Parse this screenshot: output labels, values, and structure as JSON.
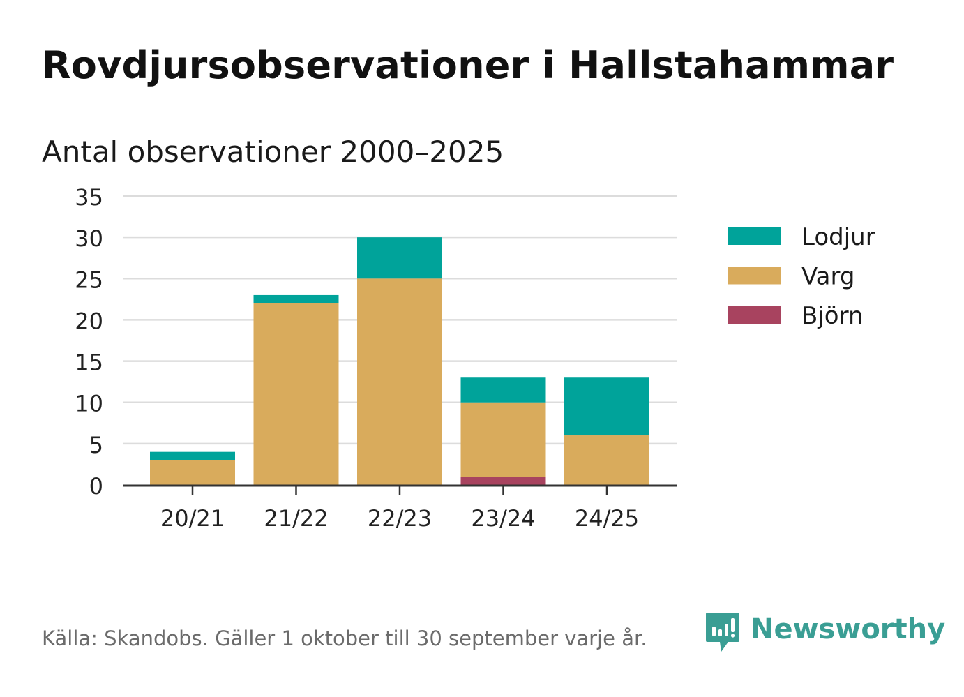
{
  "header": {
    "title": "Rovdjursobservationer i Hallstahammar",
    "subtitle": "Antal observationer 2000–2025"
  },
  "chart_data": {
    "type": "bar",
    "stacked": true,
    "categories": [
      "20/21",
      "21/22",
      "22/23",
      "23/24",
      "24/25"
    ],
    "series": [
      {
        "name": "Björn",
        "color": "#a8435f",
        "values": [
          0,
          0,
          0,
          1,
          0
        ]
      },
      {
        "name": "Varg",
        "color": "#d9ab5c",
        "values": [
          3,
          22,
          25,
          9,
          6
        ]
      },
      {
        "name": "Lodjur",
        "color": "#00a39a",
        "values": [
          1,
          1,
          5,
          3,
          7
        ]
      }
    ],
    "legend_order": [
      "Lodjur",
      "Varg",
      "Björn"
    ],
    "legend_position": "right",
    "ylim": [
      0,
      35
    ],
    "yticks": [
      0,
      5,
      10,
      15,
      20,
      25,
      30,
      35
    ],
    "grid": true,
    "xlabel": "",
    "ylabel": ""
  },
  "footer": {
    "source": "Källa: Skandobs. Gäller 1 oktober till 30 september varje år.",
    "brand": "Newsworthy",
    "brand_color": "#3a9e94"
  }
}
